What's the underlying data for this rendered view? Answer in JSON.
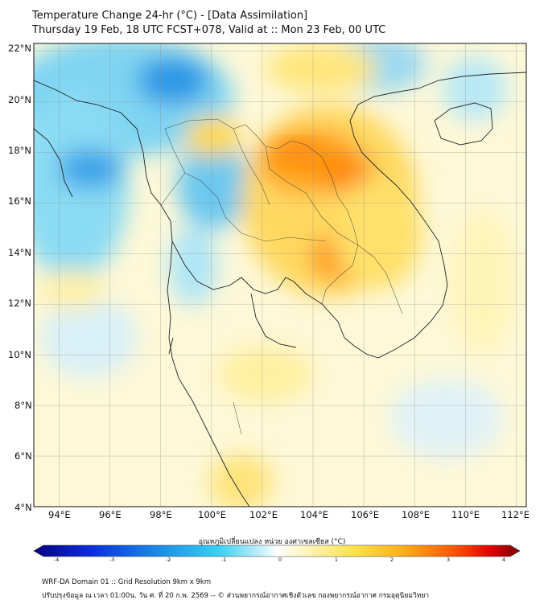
{
  "header": {
    "title_line1": "Temperature Change 24-hr (°C) - [Data Assimilation]",
    "title_line2": "Thursday 19 Feb, 18 UTC FCST+078, Valid at :: Mon 23 Feb, 00 UTC"
  },
  "map": {
    "lat_labels": [
      "22°N",
      "20°N",
      "18°N",
      "16°N",
      "14°N",
      "12°N",
      "10°N",
      "8°N",
      "6°N",
      "4°N"
    ],
    "lon_labels": [
      "94°E",
      "96°E",
      "98°E",
      "100°E",
      "102°E",
      "104°E",
      "106°E",
      "108°E",
      "110°E",
      "112°E"
    ],
    "lat_range": [
      4,
      22.3
    ],
    "lon_range": [
      93,
      112.4
    ]
  },
  "colorbar": {
    "label": "อุณหภูมิเปลี่ยนแปลง หน่วย องศาเซลเซียส (°C)",
    "ticks": [
      "-4",
      "-3",
      "-2",
      "-1",
      "0",
      "1",
      "2",
      "3",
      "4"
    ],
    "range": [
      -4,
      4
    ]
  },
  "footer": {
    "line1": "WRF-DA Domain 01 :: Grid Resolution 9km x 9km",
    "line2": "ปรับปรุงข้อมูล ณ เวลา 01:00น. วัน ศ. ที่ 20 ก.พ. 2569 -- © ส่วนพยากรณ์อากาศเชิงตัวเลข กองพยากรณ์อากาศ กรมอุตุนิยมวิทยา"
  },
  "colors": {
    "cold": "#1f8fe0",
    "warm": "#ff9a10",
    "hot": "#ff5a00",
    "neutral": "#fff7c8"
  }
}
